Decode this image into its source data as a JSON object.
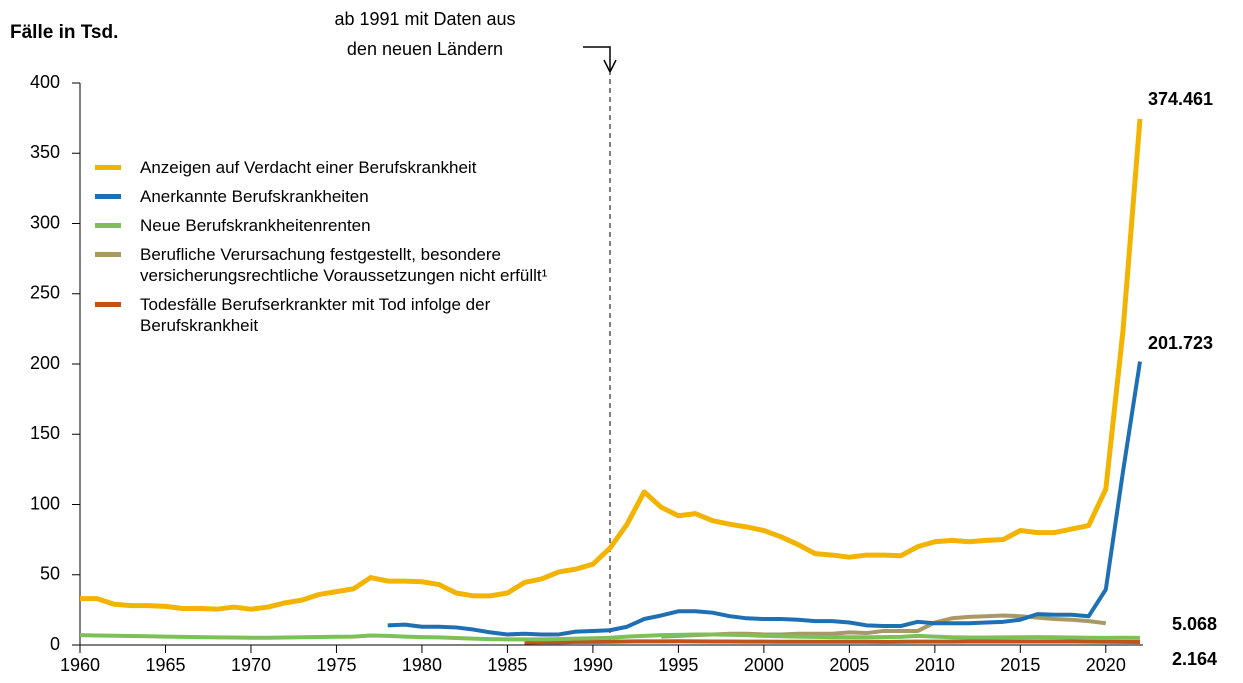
{
  "chart_data": {
    "type": "line",
    "title": "Fälle in Tsd.",
    "annotation": {
      "lines": [
        "ab 1991 mit Daten aus",
        "den neuen Ländern"
      ],
      "x": 1991
    },
    "x": [
      1960,
      1961,
      1962,
      1963,
      1964,
      1965,
      1966,
      1967,
      1968,
      1969,
      1970,
      1971,
      1972,
      1973,
      1974,
      1975,
      1976,
      1977,
      1978,
      1979,
      1980,
      1981,
      1982,
      1983,
      1984,
      1985,
      1986,
      1987,
      1988,
      1989,
      1990,
      1991,
      1992,
      1993,
      1994,
      1995,
      1996,
      1997,
      1998,
      1999,
      2000,
      2001,
      2002,
      2003,
      2004,
      2005,
      2006,
      2007,
      2008,
      2009,
      2010,
      2011,
      2012,
      2013,
      2014,
      2015,
      2016,
      2017,
      2018,
      2019,
      2020,
      2021,
      2022
    ],
    "series": [
      {
        "name": "Anzeigen auf Verdacht einer Berufskrankheit",
        "color": "#f2b400",
        "values": [
          33,
          33,
          29,
          28,
          28,
          27.5,
          26,
          26,
          25.5,
          27,
          25.5,
          27,
          30,
          32,
          36,
          38,
          40,
          48,
          45.5,
          45.5,
          45,
          43,
          37,
          35,
          35,
          37,
          44.5,
          47,
          52,
          54,
          57.5,
          69,
          86,
          109,
          98,
          92,
          93.5,
          88.5,
          86,
          84,
          81.5,
          77,
          71.5,
          65,
          64,
          62.5,
          64,
          64,
          63.5,
          70,
          73.5,
          74.5,
          73.5,
          74.5,
          75,
          81.5,
          80,
          80,
          82.5,
          85,
          111,
          223,
          374.461
        ]
      },
      {
        "name": "Anerkannte Berufskrankheiten",
        "color": "#1f6fb5",
        "values": [
          null,
          null,
          null,
          null,
          null,
          null,
          null,
          null,
          null,
          null,
          null,
          null,
          null,
          null,
          null,
          null,
          null,
          null,
          14,
          14.5,
          13,
          13,
          12.5,
          11,
          9,
          7.5,
          8,
          7.5,
          7.5,
          9.5,
          10,
          10.5,
          13,
          18.5,
          21,
          24,
          24,
          23,
          20.5,
          19,
          18.5,
          18.5,
          18,
          17,
          17,
          16,
          14,
          13.5,
          13.5,
          16.5,
          15.5,
          15.5,
          15.5,
          16,
          16.5,
          18,
          22,
          21.5,
          21.5,
          20.5,
          39.5,
          123,
          201.723
        ]
      },
      {
        "name": "Neue Berufskrankheitenrenten",
        "color": "#7dc05a",
        "values": [
          7,
          6.8,
          6.6,
          6.4,
          6.2,
          6,
          5.8,
          5.6,
          5.4,
          5.3,
          5.2,
          5.2,
          5.3,
          5.5,
          5.7,
          5.9,
          6,
          6.8,
          6.5,
          6,
          5.6,
          5.4,
          5,
          4.5,
          4.2,
          4,
          4,
          4,
          4.2,
          4.5,
          4.8,
          5.2,
          6,
          6.5,
          7,
          7.2,
          7.5,
          7.5,
          7.3,
          7,
          6.5,
          6.2,
          6,
          5.8,
          5.6,
          5.5,
          5.5,
          5.6,
          5.8,
          6.5,
          6,
          5.5,
          5.3,
          5.3,
          5.4,
          5.5,
          5.6,
          5.5,
          5.3,
          5.2,
          5.1,
          5.2,
          5.068
        ]
      },
      {
        "name": "Berufliche Verursachung festgestellt, besondere versicherungsrechtliche Voraussetzungen nicht erfüllt¹",
        "color": "#a89a64",
        "values": [
          null,
          null,
          null,
          null,
          null,
          null,
          null,
          null,
          null,
          null,
          null,
          null,
          null,
          null,
          null,
          null,
          null,
          null,
          null,
          null,
          null,
          null,
          null,
          null,
          null,
          null,
          null,
          null,
          null,
          null,
          null,
          null,
          null,
          null,
          6,
          6.5,
          7,
          7.5,
          8,
          8,
          7.5,
          7.5,
          8,
          8,
          8,
          9,
          8.5,
          10,
          10,
          10,
          16,
          19,
          20,
          20.5,
          21,
          20.5,
          19.5,
          18.5,
          18,
          17,
          15.5,
          null,
          null
        ]
      },
      {
        "name": "Todesfälle Berufserkrankter mit Tod infolge der Berufskrankheit",
        "color": "#c0531a",
        "values": [
          null,
          null,
          null,
          null,
          null,
          null,
          null,
          null,
          null,
          null,
          null,
          null,
          null,
          null,
          null,
          null,
          null,
          null,
          null,
          null,
          null,
          null,
          null,
          null,
          null,
          null,
          1.8,
          2,
          2,
          2.2,
          2.2,
          2.3,
          2.5,
          2.6,
          2.6,
          2.7,
          2.6,
          2.5,
          2.5,
          2.4,
          2.4,
          2.3,
          2.3,
          2.3,
          2.3,
          2.3,
          2.3,
          2.2,
          2.3,
          2.4,
          2.4,
          2.4,
          2.5,
          2.5,
          2.5,
          2.5,
          2.5,
          2.5,
          2.5,
          2.4,
          2.3,
          2.2,
          2.164
        ]
      }
    ],
    "xlim": [
      1960,
      2022
    ],
    "xticks": [
      1960,
      1965,
      1970,
      1975,
      1980,
      1985,
      1990,
      1995,
      2000,
      2005,
      2010,
      2015,
      2020
    ],
    "ylim": [
      0,
      400
    ],
    "yticks": [
      0,
      50,
      100,
      150,
      200,
      250,
      300,
      350,
      400
    ],
    "end_labels": [
      0,
      1,
      2,
      4
    ]
  }
}
